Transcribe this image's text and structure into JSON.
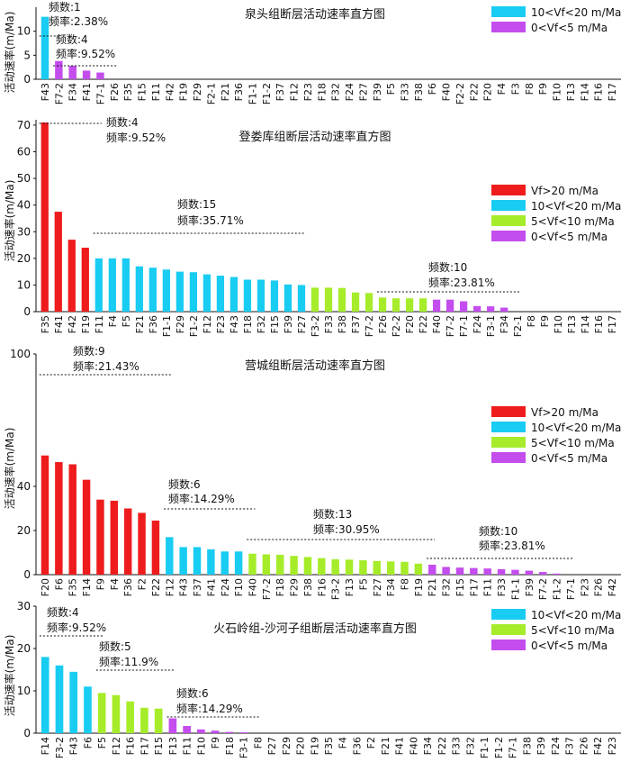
{
  "figure": {
    "y_axis_label": "活动速率(m/Ma)"
  },
  "colors": {
    "red": "#ee1c1c",
    "cyan": "#19ccf2",
    "green": "#a6ec2a",
    "purple": "#c44dee"
  },
  "chart_data": [
    {
      "type": "bar",
      "title": "泉头组断层活动速率直方图",
      "ylabel": "活动速率(m/Ma)",
      "ylim": [
        0,
        15
      ],
      "yticks": [
        0,
        5,
        10
      ],
      "categories": [
        "F43",
        "F7-2",
        "F34",
        "F41",
        "F7-1",
        "F26",
        "F35",
        "F15",
        "F11",
        "F42",
        "F19",
        "F29",
        "F2-1",
        "F21",
        "F36",
        "F1-1",
        "F1-2",
        "F37",
        "F12",
        "F23",
        "F18",
        "F32",
        "F24",
        "F27",
        "F39",
        "F5",
        "F33",
        "F38",
        "F6",
        "F40",
        "F2-2",
        "F22",
        "F20",
        "F4",
        "F3",
        "F8",
        "F9",
        "F10",
        "F13",
        "F14",
        "F16",
        "F17"
      ],
      "values": [
        13,
        3.8,
        2.8,
        1.8,
        1.4,
        0,
        0,
        0,
        0,
        0,
        0,
        0,
        0,
        0,
        0,
        0,
        0,
        0,
        0,
        0,
        0,
        0,
        0,
        0,
        0,
        0,
        0,
        0,
        0,
        0,
        0,
        0,
        0,
        0,
        0,
        0,
        0,
        0,
        0,
        0,
        0,
        0
      ],
      "legend": [
        {
          "label": "10<Vf<20 m/Ma",
          "color": "#19ccf2"
        },
        {
          "label": "0<Vf<5 m/Ma",
          "color": "#c44dee"
        }
      ],
      "annotations": [
        {
          "count": "频数:1",
          "freq": "频率:2.38%"
        },
        {
          "count": "频数:4",
          "freq": "频率:9.52%"
        }
      ]
    },
    {
      "type": "bar",
      "title": "登娄库组断层活动速率直方图",
      "ylabel": "活动速率(m/Ma)",
      "ylim": [
        0,
        72
      ],
      "yticks": [
        0,
        10,
        20,
        30,
        40,
        50,
        60,
        70
      ],
      "categories": [
        "F35",
        "F41",
        "F42",
        "F19",
        "F11",
        "F4",
        "F5",
        "F21",
        "F36",
        "F1-1",
        "F29",
        "F1-2",
        "F12",
        "F23",
        "F43",
        "F18",
        "F32",
        "F15",
        "F39",
        "F27",
        "F3-2",
        "F33",
        "F38",
        "F37",
        "F7-2",
        "F26",
        "F2-2",
        "F20",
        "F22",
        "F40",
        "F7-2",
        "F7-1",
        "F24",
        "F3-1",
        "F34",
        "F2-1",
        "F8",
        "F9",
        "F10",
        "F13",
        "F14",
        "F16",
        "F17"
      ],
      "values": [
        71,
        37.5,
        27,
        24,
        20,
        20,
        20,
        17,
        16.5,
        15.8,
        15,
        14.8,
        14,
        13.5,
        13,
        12,
        12,
        11.7,
        10.2,
        10,
        9,
        9,
        8.9,
        7.2,
        7,
        5.3,
        5,
        5,
        5,
        4.5,
        4.5,
        3.9,
        2.1,
        2,
        1.5,
        0,
        0,
        0,
        0,
        0,
        0,
        0,
        0
      ],
      "legend": [
        {
          "label": "Vf>20 m/Ma",
          "color": "#ee1c1c"
        },
        {
          "label": "10<Vf<20 m/Ma",
          "color": "#19ccf2"
        },
        {
          "label": "5<Vf<10 m/Ma",
          "color": "#a6ec2a"
        },
        {
          "label": "0<Vf<5 m/Ma",
          "color": "#c44dee"
        }
      ],
      "annotations": [
        {
          "count": "频数:4",
          "freq": "频率:9.52%"
        },
        {
          "count": "频数:15",
          "freq": "频率:35.71%"
        },
        {
          "count": "频数:10",
          "freq": "频率:23.81%"
        }
      ]
    },
    {
      "type": "bar",
      "title": "营城组断层活动速率直方图",
      "ylabel": "活动速率(m/Ma)",
      "ylim": [
        0,
        100
      ],
      "yticks": [
        0,
        20,
        40,
        100
      ],
      "categories": [
        "F20",
        "F6",
        "F35",
        "F14",
        "F9",
        "F4",
        "F36",
        "F2",
        "F22",
        "F12",
        "F43",
        "F37",
        "F41",
        "F24",
        "F10",
        "F40",
        "F7-2",
        "F18",
        "F29",
        "F38",
        "F16",
        "F3-2",
        "F13",
        "F5",
        "F27",
        "F34",
        "F8",
        "F19",
        "F21",
        "F32",
        "F15",
        "F17",
        "F11",
        "F33",
        "F1-1",
        "F39",
        "F7-2",
        "F1-2",
        "F7-1",
        "F23",
        "F26",
        "F42"
      ],
      "values": [
        54,
        51,
        50,
        43,
        34,
        33.5,
        30,
        28,
        24.5,
        17,
        12.5,
        12.5,
        11.5,
        10.5,
        10.5,
        9.5,
        9.2,
        9,
        8.5,
        8,
        7.5,
        7,
        6.8,
        6.5,
        6.2,
        6,
        5.8,
        5,
        4.5,
        3.5,
        3.2,
        3,
        2.8,
        2.5,
        2.2,
        1.8,
        1.2,
        0.5,
        0,
        0,
        0,
        0
      ],
      "legend": [
        {
          "label": "Vf>20 m/Ma",
          "color": "#ee1c1c"
        },
        {
          "label": "10<Vf<20 m/Ma",
          "color": "#19ccf2"
        },
        {
          "label": "5<Vf<10 m/Ma",
          "color": "#a6ec2a"
        },
        {
          "label": "0<Vf<5 m/Ma",
          "color": "#c44dee"
        }
      ],
      "annotations": [
        {
          "count": "频数:9",
          "freq": "频率:21.43%"
        },
        {
          "count": "频数:6",
          "freq": "频率:14.29%"
        },
        {
          "count": "频数:13",
          "freq": "频率:30.95%"
        },
        {
          "count": "频数:10",
          "freq": "频率:23.81%"
        }
      ]
    },
    {
      "type": "bar",
      "title": "火石岭组-沙河子组断层活动速率直方图",
      "ylabel": "活动速率(m/Ma)",
      "ylim": [
        0,
        30
      ],
      "yticks": [
        0,
        10,
        20,
        30
      ],
      "categories": [
        "F14",
        "F3-2",
        "F43",
        "F6",
        "F5",
        "F12",
        "F16",
        "F17",
        "F15",
        "F13",
        "F11",
        "F10",
        "F9",
        "F18",
        "F3-1",
        "F8",
        "F27",
        "F29",
        "F20",
        "F19",
        "F35",
        "F4",
        "F36",
        "F2",
        "F21",
        "F41",
        "F40",
        "F34",
        "F22",
        "F33",
        "F32",
        "F1-1",
        "F1-2",
        "F7-1",
        "F38",
        "F39",
        "F24",
        "F37",
        "F26",
        "F42",
        "F23"
      ],
      "values": [
        18,
        16,
        14.5,
        11,
        9.5,
        9,
        7.5,
        6,
        5.8,
        3.5,
        1.7,
        0.9,
        0.6,
        0.3,
        0.2,
        0,
        0,
        0,
        0,
        0,
        0,
        0,
        0,
        0,
        0,
        0,
        0,
        0,
        0,
        0,
        0,
        0,
        0,
        0,
        0,
        0,
        0,
        0,
        0,
        0,
        0
      ],
      "legend": [
        {
          "label": "10<Vf<20 m/Ma",
          "color": "#19ccf2"
        },
        {
          "label": "5<Vf<10 m/Ma",
          "color": "#a6ec2a"
        },
        {
          "label": "0<Vf<5 m/Ma",
          "color": "#c44dee"
        }
      ],
      "annotations": [
        {
          "count": "频数:4",
          "freq": "频率:9.52%"
        },
        {
          "count": "频数:5",
          "freq": "频率:11.9%"
        },
        {
          "count": "频数:6",
          "freq": "频率:14.29%"
        }
      ]
    }
  ]
}
